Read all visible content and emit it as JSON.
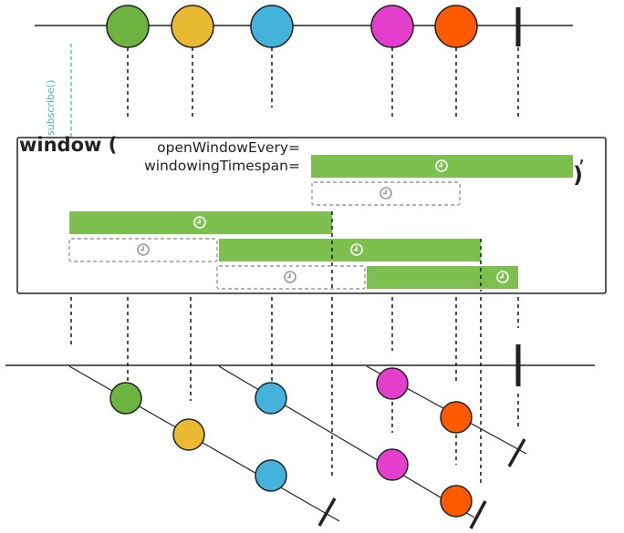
{
  "operator": {
    "name": "window (",
    "param_every": "openWindowEvery=",
    "param_timespan": "windowingTimespan=",
    "comma": ",",
    "close_paren": ")"
  },
  "subscribe_label": "subscribe()",
  "colors": {
    "green": "#6db33f",
    "yellow": "#e8b931",
    "blue": "#45b2dc",
    "magenta": "#e33fcc",
    "orange": "#ff5a00",
    "window_bar": "#7dc04f",
    "stroke": "#222222",
    "dashed_box": "#999999",
    "subscribe_line": "#45b2dc"
  },
  "icons": {
    "timer": "clock-icon",
    "completion": "completion-bar-icon"
  },
  "source_emissions": [
    "green",
    "yellow",
    "blue",
    "magenta",
    "orange"
  ]
}
